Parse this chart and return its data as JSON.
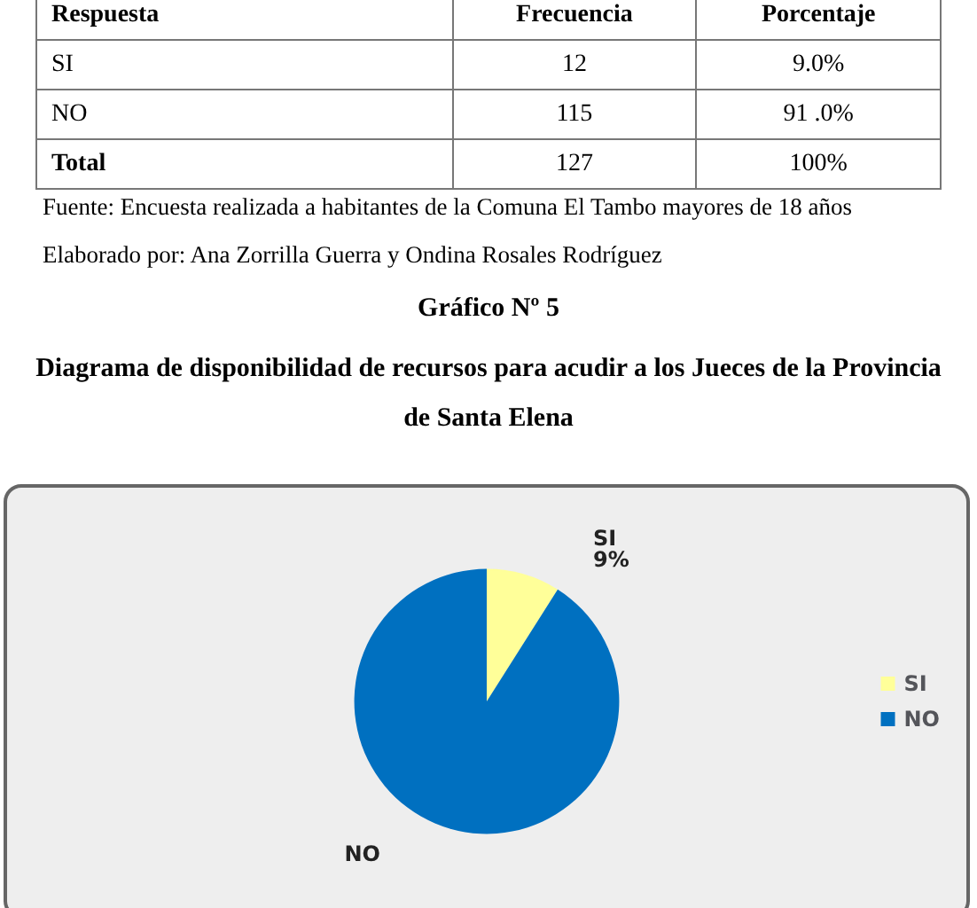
{
  "chart_data": {
    "type": "pie",
    "title": "Gráfico Nº 5",
    "subtitle": "Diagrama de disponibilidad de recursos para acudir a los Jueces de la Provincia de Santa Elena",
    "categories": [
      "SI",
      "NO"
    ],
    "values": [
      9,
      91
    ],
    "colors": [
      "#ffff99",
      "#0070c0"
    ],
    "value_labels": [
      "9%",
      null
    ],
    "legend": "right",
    "annotations": [
      "Respuesta",
      "Frecuencia",
      "Porcentaje",
      "SI",
      "12",
      "9.0%",
      "NO",
      "115",
      "91 .0%",
      "Total",
      "127",
      "100%",
      "Fuente: Encuesta realizada a habitantes de la Comuna El Tambo mayores de 18 años",
      "Elaborado por: Ana Zorrilla Guerra y Ondina Rosales Rodríguez"
    ]
  }
}
